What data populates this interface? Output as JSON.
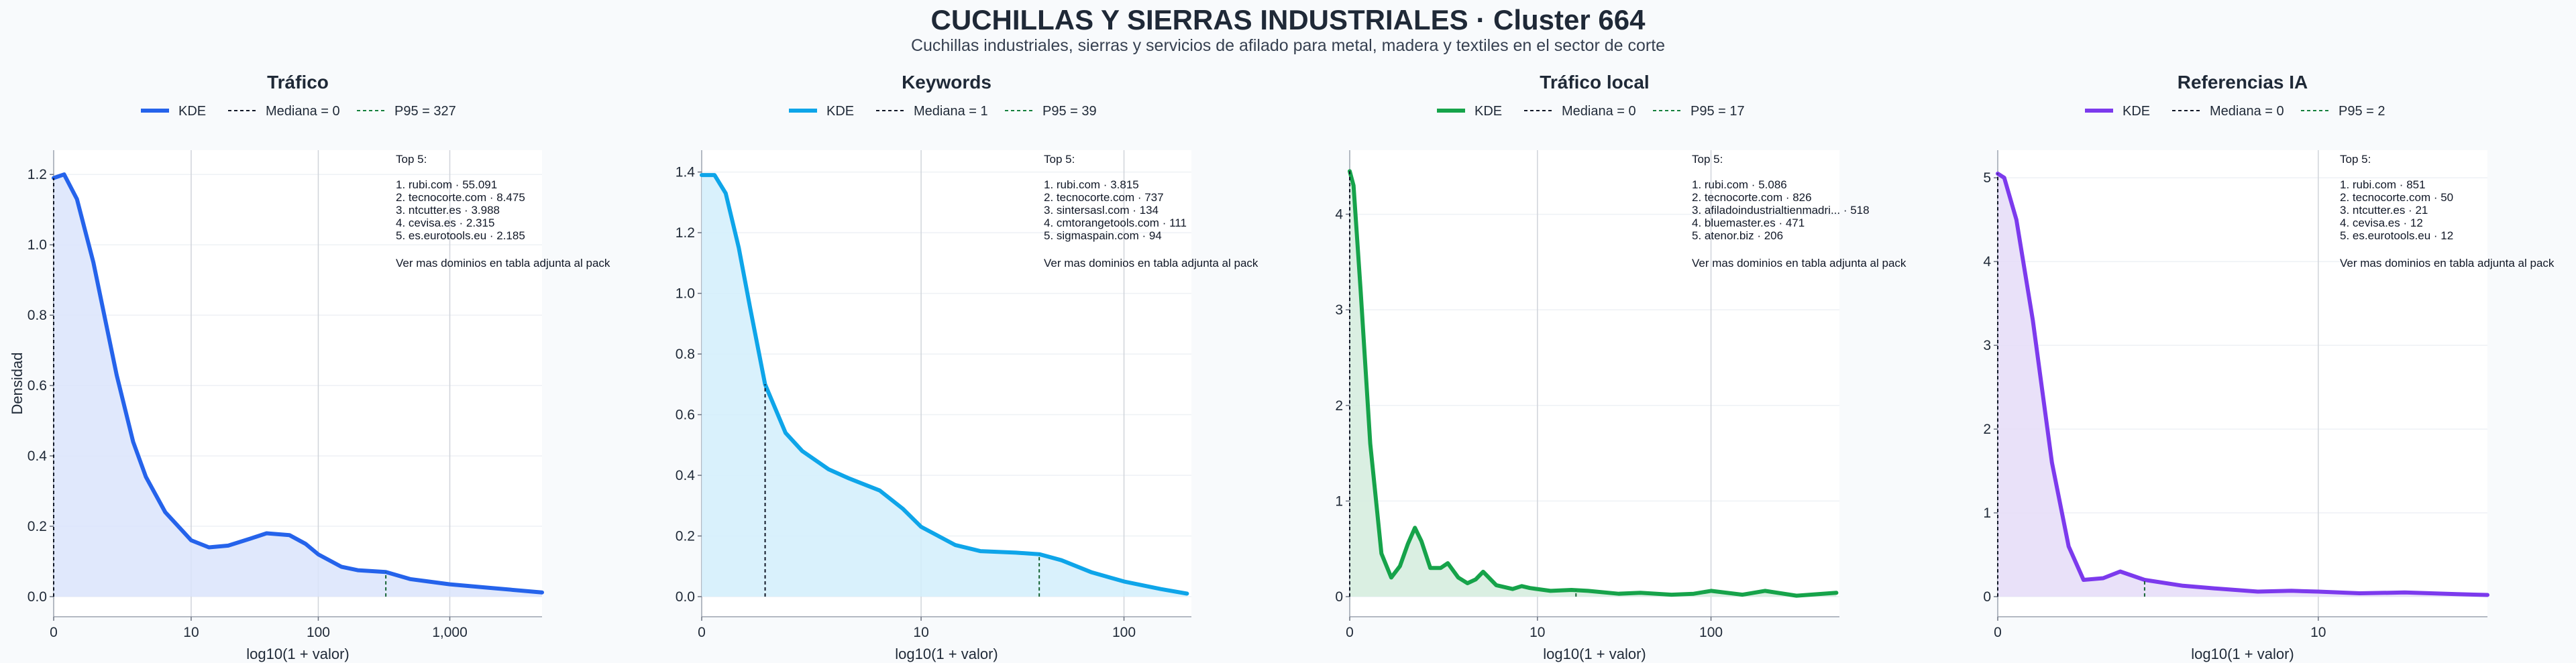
{
  "title": "CUCHILLAS Y SIERRAS INDUSTRIALES · Cluster 664",
  "subtitle": "Cuchillas industriales, sierras y servicios de afilado para metal, madera y textiles en el sector de corte",
  "chart_data": [
    {
      "type": "area",
      "title": "Tráfico",
      "xlabel": "log10(1 + valor)",
      "ylabel": "Densidad",
      "x_scale": "log10(1+x)",
      "xlim": [
        0,
        5000
      ],
      "ylim": [
        0,
        1.25
      ],
      "xticks": [
        "0",
        "10",
        "100",
        "1,000"
      ],
      "xtick_values": [
        0,
        10,
        100,
        1000
      ],
      "yticks": [
        0.0,
        0.2,
        0.4,
        0.6,
        0.8,
        1.0,
        1.2
      ],
      "color": "#2563eb",
      "fill": "#dbe4fc",
      "legend": [
        "KDE",
        "Mediana = 0",
        "P95 = 327"
      ],
      "median": 0,
      "p95": 327,
      "series": [
        {
          "x": [
            0,
            0.2,
            0.5,
            1,
            2,
            3,
            4,
            6,
            10,
            14,
            20,
            30,
            40,
            60,
            80,
            100,
            150,
            200,
            327,
            500,
            1000,
            2000,
            5000
          ],
          "y": [
            1.19,
            1.2,
            1.13,
            0.95,
            0.63,
            0.44,
            0.34,
            0.24,
            0.16,
            0.14,
            0.145,
            0.165,
            0.18,
            0.175,
            0.15,
            0.12,
            0.085,
            0.075,
            0.07,
            0.05,
            0.035,
            0.025,
            0.012
          ]
        }
      ],
      "top5_header": "Top 5:",
      "top5": [
        "1. rubi.com · 55.091",
        "2. tecnocorte.com · 8.475",
        "3. ntcutter.es · 3.988",
        "4. cevisa.es · 2.315",
        "5. es.eurotools.eu · 2.185"
      ],
      "note": "Ver mas dominios en tabla adjunta al pack"
    },
    {
      "type": "area",
      "title": "Keywords",
      "xlabel": "log10(1 + valor)",
      "ylabel": "",
      "x_scale": "log10(1+x)",
      "xlim": [
        0,
        210
      ],
      "ylim": [
        0,
        1.45
      ],
      "xticks": [
        "0",
        "10",
        "100"
      ],
      "xtick_values": [
        0,
        10,
        100
      ],
      "yticks": [
        0.0,
        0.2,
        0.4,
        0.6,
        0.8,
        1.0,
        1.2,
        1.4
      ],
      "color": "#0ea5e9",
      "fill": "#d2eefb",
      "legend": [
        "KDE",
        "Mediana = 1",
        "P95 = 39"
      ],
      "median": 1,
      "p95": 39,
      "series": [
        {
          "x": [
            0,
            0.15,
            0.3,
            0.5,
            0.7,
            1,
            1.5,
            2,
            3,
            4,
            6,
            8,
            10,
            15,
            20,
            30,
            39,
            50,
            70,
            100,
            150,
            200
          ],
          "y": [
            1.39,
            1.39,
            1.33,
            1.15,
            0.95,
            0.7,
            0.54,
            0.48,
            0.42,
            0.39,
            0.35,
            0.29,
            0.23,
            0.17,
            0.15,
            0.145,
            0.14,
            0.12,
            0.08,
            0.05,
            0.025,
            0.01
          ]
        }
      ],
      "top5_header": "Top 5:",
      "top5": [
        "1. rubi.com · 3.815",
        "2. tecnocorte.com · 737",
        "3. sintersasl.com · 134",
        "4. cmtorangetools.com · 111",
        "5. sigmaspain.com · 94"
      ],
      "note": "Ver mas dominios en tabla adjunta al pack"
    },
    {
      "type": "area",
      "title": "Tráfico local",
      "xlabel": "log10(1 + valor)",
      "ylabel": "",
      "x_scale": "log10(1+x)",
      "xlim": [
        0,
        520
      ],
      "ylim": [
        0,
        4.6
      ],
      "xticks": [
        "0",
        "10",
        "100"
      ],
      "xtick_values": [
        0,
        10,
        100
      ],
      "yticks": [
        0,
        1,
        2,
        3,
        4
      ],
      "color": "#16a34a",
      "fill": "#d4ecdd",
      "legend": [
        "KDE",
        "Mediana = 0",
        "P95 = 17"
      ],
      "median": 0,
      "p95": 17,
      "series": [
        {
          "x": [
            0,
            0.05,
            0.15,
            0.3,
            0.5,
            0.7,
            0.9,
            1.1,
            1.3,
            1.5,
            1.8,
            2.2,
            2.5,
            3,
            3.5,
            4,
            4.5,
            5.5,
            7,
            8,
            9,
            12,
            16,
            20,
            30,
            40,
            60,
            80,
            100,
            150,
            200,
            300,
            500
          ],
          "y": [
            4.45,
            4.3,
            3.2,
            1.6,
            0.45,
            0.2,
            0.32,
            0.55,
            0.72,
            0.58,
            0.3,
            0.3,
            0.35,
            0.2,
            0.14,
            0.18,
            0.26,
            0.12,
            0.08,
            0.11,
            0.09,
            0.06,
            0.07,
            0.06,
            0.03,
            0.04,
            0.02,
            0.03,
            0.06,
            0.02,
            0.06,
            0.01,
            0.04
          ]
        }
      ],
      "top5_header": "Top 5:",
      "top5": [
        "1. rubi.com · 5.086",
        "2. tecnocorte.com · 826",
        "3. afiladoindustrialtienmadri... · 518",
        "4. bluemaster.es · 471",
        "5. atenor.biz · 206"
      ],
      "note": "Ver mas dominios en tabla adjunta al pack"
    },
    {
      "type": "area",
      "title": "Referencias IA",
      "xlabel": "log10(1 + valor)",
      "ylabel": "",
      "x_scale": "log10(1+x)",
      "xlim": [
        0,
        38
      ],
      "ylim": [
        0,
        5.25
      ],
      "xticks": [
        "0",
        "10"
      ],
      "xtick_values": [
        0,
        10
      ],
      "yticks": [
        0,
        1,
        2,
        3,
        4,
        5
      ],
      "color": "#7c3aed",
      "fill": "#e5dcf8",
      "legend": [
        "KDE",
        "Mediana = 0",
        "P95 = 2"
      ],
      "median": 0,
      "p95": 2,
      "series": [
        {
          "x": [
            0,
            0.05,
            0.15,
            0.3,
            0.5,
            0.7,
            0.9,
            1.2,
            1.5,
            2,
            3,
            4,
            6,
            8,
            10,
            14,
            20,
            30,
            38
          ],
          "y": [
            5.05,
            5.0,
            4.5,
            3.3,
            1.6,
            0.6,
            0.2,
            0.22,
            0.3,
            0.2,
            0.13,
            0.1,
            0.06,
            0.07,
            0.06,
            0.04,
            0.05,
            0.03,
            0.02
          ]
        }
      ],
      "top5_header": "Top 5:",
      "top5": [
        "1. rubi.com · 851",
        "2. tecnocorte.com · 50",
        "3. ntcutter.es · 21",
        "4. cevisa.es · 12",
        "5. es.eurotools.eu · 12"
      ],
      "note": "Ver mas dominios en tabla adjunta al pack"
    }
  ]
}
